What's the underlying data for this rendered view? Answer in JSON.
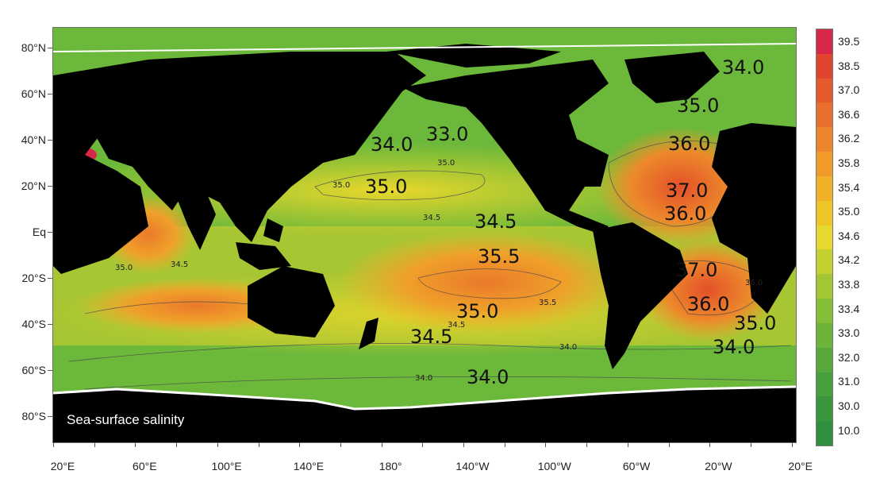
{
  "map": {
    "title": "Sea-surface salinity",
    "lat_labels": [
      "80°N",
      "60°N",
      "40°N",
      "20°N",
      "Eq",
      "20°S",
      "40°S",
      "60°S",
      "80°S"
    ],
    "lon_labels": [
      "20°E",
      "60°E",
      "100°E",
      "140°E",
      "180°",
      "140°W",
      "100°W",
      "60°W",
      "20°W",
      "20°E"
    ],
    "contour_labels_large": [
      "34.0",
      "33.0",
      "34.0",
      "35.0",
      "35.0",
      "36.0",
      "37.0",
      "36.0",
      "34.5",
      "35.5",
      "37.0",
      "36.0",
      "35.0",
      "35.0",
      "34.5",
      "34.0",
      "34.0"
    ],
    "contour_labels_small": [
      "35.0",
      "35.0",
      "34.5",
      "35.0",
      "34.5",
      "35.5",
      "36.0",
      "34.5",
      "34.0",
      "34.0"
    ],
    "colors": {
      "land": "#000000",
      "ice": "#ffffff",
      "low_salinity": "#3fa03a",
      "mid_salinity": "#e6dd2a",
      "high_salinity": "#e0562a"
    }
  },
  "colorbar": {
    "labels": [
      "39.5",
      "38.5",
      "37.0",
      "36.6",
      "36.2",
      "35.8",
      "35.4",
      "35.0",
      "34.6",
      "34.2",
      "33.8",
      "33.4",
      "33.0",
      "32.0",
      "31.0",
      "30.0",
      "10.0"
    ],
    "colors": [
      "#d8284a",
      "#e0452e",
      "#e55a2c",
      "#e8702c",
      "#ec852b",
      "#ef9a2a",
      "#f0b129",
      "#eec62a",
      "#e6d82c",
      "#c4d02f",
      "#a2c634",
      "#86bd36",
      "#6cb339",
      "#58a93b",
      "#47a03d",
      "#3a973e",
      "#31903f"
    ]
  }
}
